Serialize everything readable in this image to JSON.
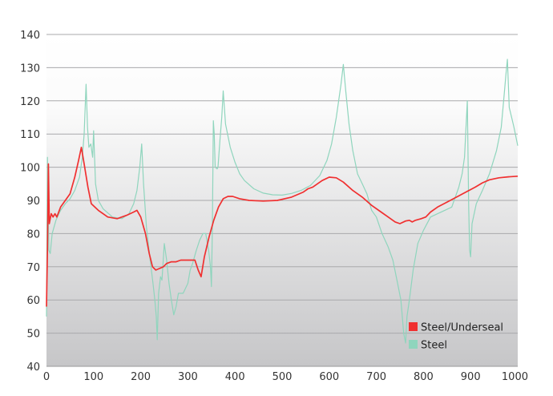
{
  "chart_data": {
    "type": "line",
    "xlim": [
      0,
      1000
    ],
    "ylim": [
      40,
      140
    ],
    "x_ticks": [
      "0",
      "100",
      "200",
      "300",
      "400",
      "500",
      "600",
      "700",
      "800",
      "900",
      "1000"
    ],
    "y_ticks": [
      "40",
      "50",
      "60",
      "70",
      "80",
      "90",
      "100",
      "110",
      "120",
      "130",
      "140"
    ],
    "grid": "horizontal",
    "legend_position": "bottom-right",
    "series": [
      {
        "name": "Steel/Underseal",
        "color": "#f03030",
        "points": [
          [
            0,
            58
          ],
          [
            2,
            75
          ],
          [
            4,
            101
          ],
          [
            6,
            83
          ],
          [
            10,
            86
          ],
          [
            14,
            85
          ],
          [
            18,
            86
          ],
          [
            22,
            85
          ],
          [
            30,
            88
          ],
          [
            40,
            90
          ],
          [
            50,
            92
          ],
          [
            60,
            97
          ],
          [
            68,
            102
          ],
          [
            74,
            106
          ],
          [
            80,
            101
          ],
          [
            88,
            94
          ],
          [
            95,
            89
          ],
          [
            110,
            87
          ],
          [
            130,
            85
          ],
          [
            150,
            84.5
          ],
          [
            170,
            85.5
          ],
          [
            185,
            86.5
          ],
          [
            192,
            87
          ],
          [
            200,
            85
          ],
          [
            210,
            80
          ],
          [
            218,
            74
          ],
          [
            225,
            70
          ],
          [
            232,
            69
          ],
          [
            240,
            69.5
          ],
          [
            248,
            70
          ],
          [
            255,
            71
          ],
          [
            265,
            71.5
          ],
          [
            275,
            71.5
          ],
          [
            285,
            72
          ],
          [
            295,
            72
          ],
          [
            305,
            72
          ],
          [
            315,
            72
          ],
          [
            322,
            69
          ],
          [
            328,
            67
          ],
          [
            335,
            73
          ],
          [
            345,
            79
          ],
          [
            355,
            84
          ],
          [
            365,
            88
          ],
          [
            375,
            90.5
          ],
          [
            385,
            91.2
          ],
          [
            395,
            91.2
          ],
          [
            410,
            90.5
          ],
          [
            430,
            90
          ],
          [
            460,
            89.8
          ],
          [
            490,
            90
          ],
          [
            520,
            91
          ],
          [
            545,
            92.5
          ],
          [
            555,
            93.5
          ],
          [
            565,
            94
          ],
          [
            575,
            95
          ],
          [
            585,
            96
          ],
          [
            600,
            97
          ],
          [
            615,
            96.8
          ],
          [
            630,
            95.5
          ],
          [
            650,
            93
          ],
          [
            670,
            91
          ],
          [
            690,
            88.5
          ],
          [
            710,
            86.5
          ],
          [
            725,
            85
          ],
          [
            740,
            83.5
          ],
          [
            750,
            83
          ],
          [
            762,
            83.8
          ],
          [
            770,
            84
          ],
          [
            776,
            83.5
          ],
          [
            783,
            84
          ],
          [
            795,
            84.5
          ],
          [
            805,
            85
          ],
          [
            815,
            86.5
          ],
          [
            830,
            88
          ],
          [
            850,
            89.5
          ],
          [
            870,
            91
          ],
          [
            890,
            92.5
          ],
          [
            910,
            94
          ],
          [
            925,
            95.3
          ],
          [
            940,
            96.2
          ],
          [
            960,
            96.8
          ],
          [
            980,
            97.1
          ],
          [
            1000,
            97.3
          ]
        ]
      },
      {
        "name": "Steel",
        "color": "#8fd5bd",
        "points": [
          [
            0,
            55
          ],
          [
            2,
            103
          ],
          [
            5,
            75
          ],
          [
            8,
            74
          ],
          [
            12,
            80
          ],
          [
            20,
            84
          ],
          [
            30,
            87
          ],
          [
            40,
            89
          ],
          [
            50,
            90.5
          ],
          [
            60,
            93
          ],
          [
            70,
            97
          ],
          [
            76,
            103
          ],
          [
            80,
            110
          ],
          [
            84,
            125
          ],
          [
            87,
            112
          ],
          [
            90,
            106
          ],
          [
            94,
            107
          ],
          [
            98,
            103
          ],
          [
            100,
            111
          ],
          [
            104,
            95
          ],
          [
            110,
            90
          ],
          [
            120,
            87.5
          ],
          [
            140,
            85
          ],
          [
            160,
            84.5
          ],
          [
            175,
            86
          ],
          [
            185,
            89
          ],
          [
            192,
            93
          ],
          [
            198,
            100
          ],
          [
            202,
            107
          ],
          [
            206,
            95
          ],
          [
            212,
            82
          ],
          [
            220,
            72
          ],
          [
            226,
            65
          ],
          [
            230,
            60
          ],
          [
            233,
            55
          ],
          [
            235,
            48
          ],
          [
            238,
            62
          ],
          [
            242,
            67
          ],
          [
            245,
            66
          ],
          [
            250,
            77
          ],
          [
            255,
            72
          ],
          [
            260,
            65
          ],
          [
            265,
            60
          ],
          [
            270,
            55.5
          ],
          [
            275,
            58
          ],
          [
            280,
            62
          ],
          [
            290,
            62
          ],
          [
            300,
            65
          ],
          [
            305,
            69
          ],
          [
            310,
            71
          ],
          [
            318,
            75
          ],
          [
            325,
            78
          ],
          [
            332,
            80
          ],
          [
            338,
            80
          ],
          [
            344,
            75
          ],
          [
            348,
            70
          ],
          [
            350,
            64
          ],
          [
            352,
            82
          ],
          [
            354,
            114
          ],
          [
            356,
            110
          ],
          [
            358,
            100
          ],
          [
            362,
            99.5
          ],
          [
            364,
            100
          ],
          [
            368,
            108
          ],
          [
            372,
            115
          ],
          [
            375,
            123
          ],
          [
            380,
            113
          ],
          [
            390,
            106
          ],
          [
            400,
            101.5
          ],
          [
            410,
            98
          ],
          [
            420,
            96
          ],
          [
            440,
            93.5
          ],
          [
            460,
            92.2
          ],
          [
            480,
            91.7
          ],
          [
            500,
            91.6
          ],
          [
            520,
            92.1
          ],
          [
            540,
            93
          ],
          [
            560,
            94.5
          ],
          [
            580,
            97.5
          ],
          [
            595,
            102
          ],
          [
            605,
            107
          ],
          [
            615,
            115
          ],
          [
            625,
            125
          ],
          [
            630,
            131
          ],
          [
            635,
            123
          ],
          [
            642,
            113
          ],
          [
            650,
            105
          ],
          [
            660,
            98
          ],
          [
            670,
            95
          ],
          [
            680,
            92
          ],
          [
            690,
            87
          ],
          [
            700,
            85
          ],
          [
            712,
            80
          ],
          [
            725,
            76
          ],
          [
            735,
            72
          ],
          [
            745,
            65
          ],
          [
            752,
            60
          ],
          [
            758,
            50
          ],
          [
            762,
            47
          ],
          [
            765,
            55
          ],
          [
            770,
            60
          ],
          [
            778,
            69
          ],
          [
            788,
            77
          ],
          [
            800,
            81
          ],
          [
            815,
            85
          ],
          [
            830,
            86
          ],
          [
            845,
            87
          ],
          [
            860,
            88
          ],
          [
            875,
            94
          ],
          [
            882,
            98
          ],
          [
            887,
            103
          ],
          [
            893,
            120
          ],
          [
            896,
            88
          ],
          [
            898,
            75
          ],
          [
            900,
            73
          ],
          [
            903,
            83
          ],
          [
            912,
            89
          ],
          [
            925,
            93
          ],
          [
            940,
            98
          ],
          [
            955,
            105
          ],
          [
            965,
            112
          ],
          [
            970,
            120
          ],
          [
            975,
            128
          ],
          [
            978,
            132.5
          ],
          [
            982,
            118
          ],
          [
            987,
            115
          ],
          [
            992,
            112
          ],
          [
            1000,
            106.5
          ]
        ]
      }
    ]
  }
}
